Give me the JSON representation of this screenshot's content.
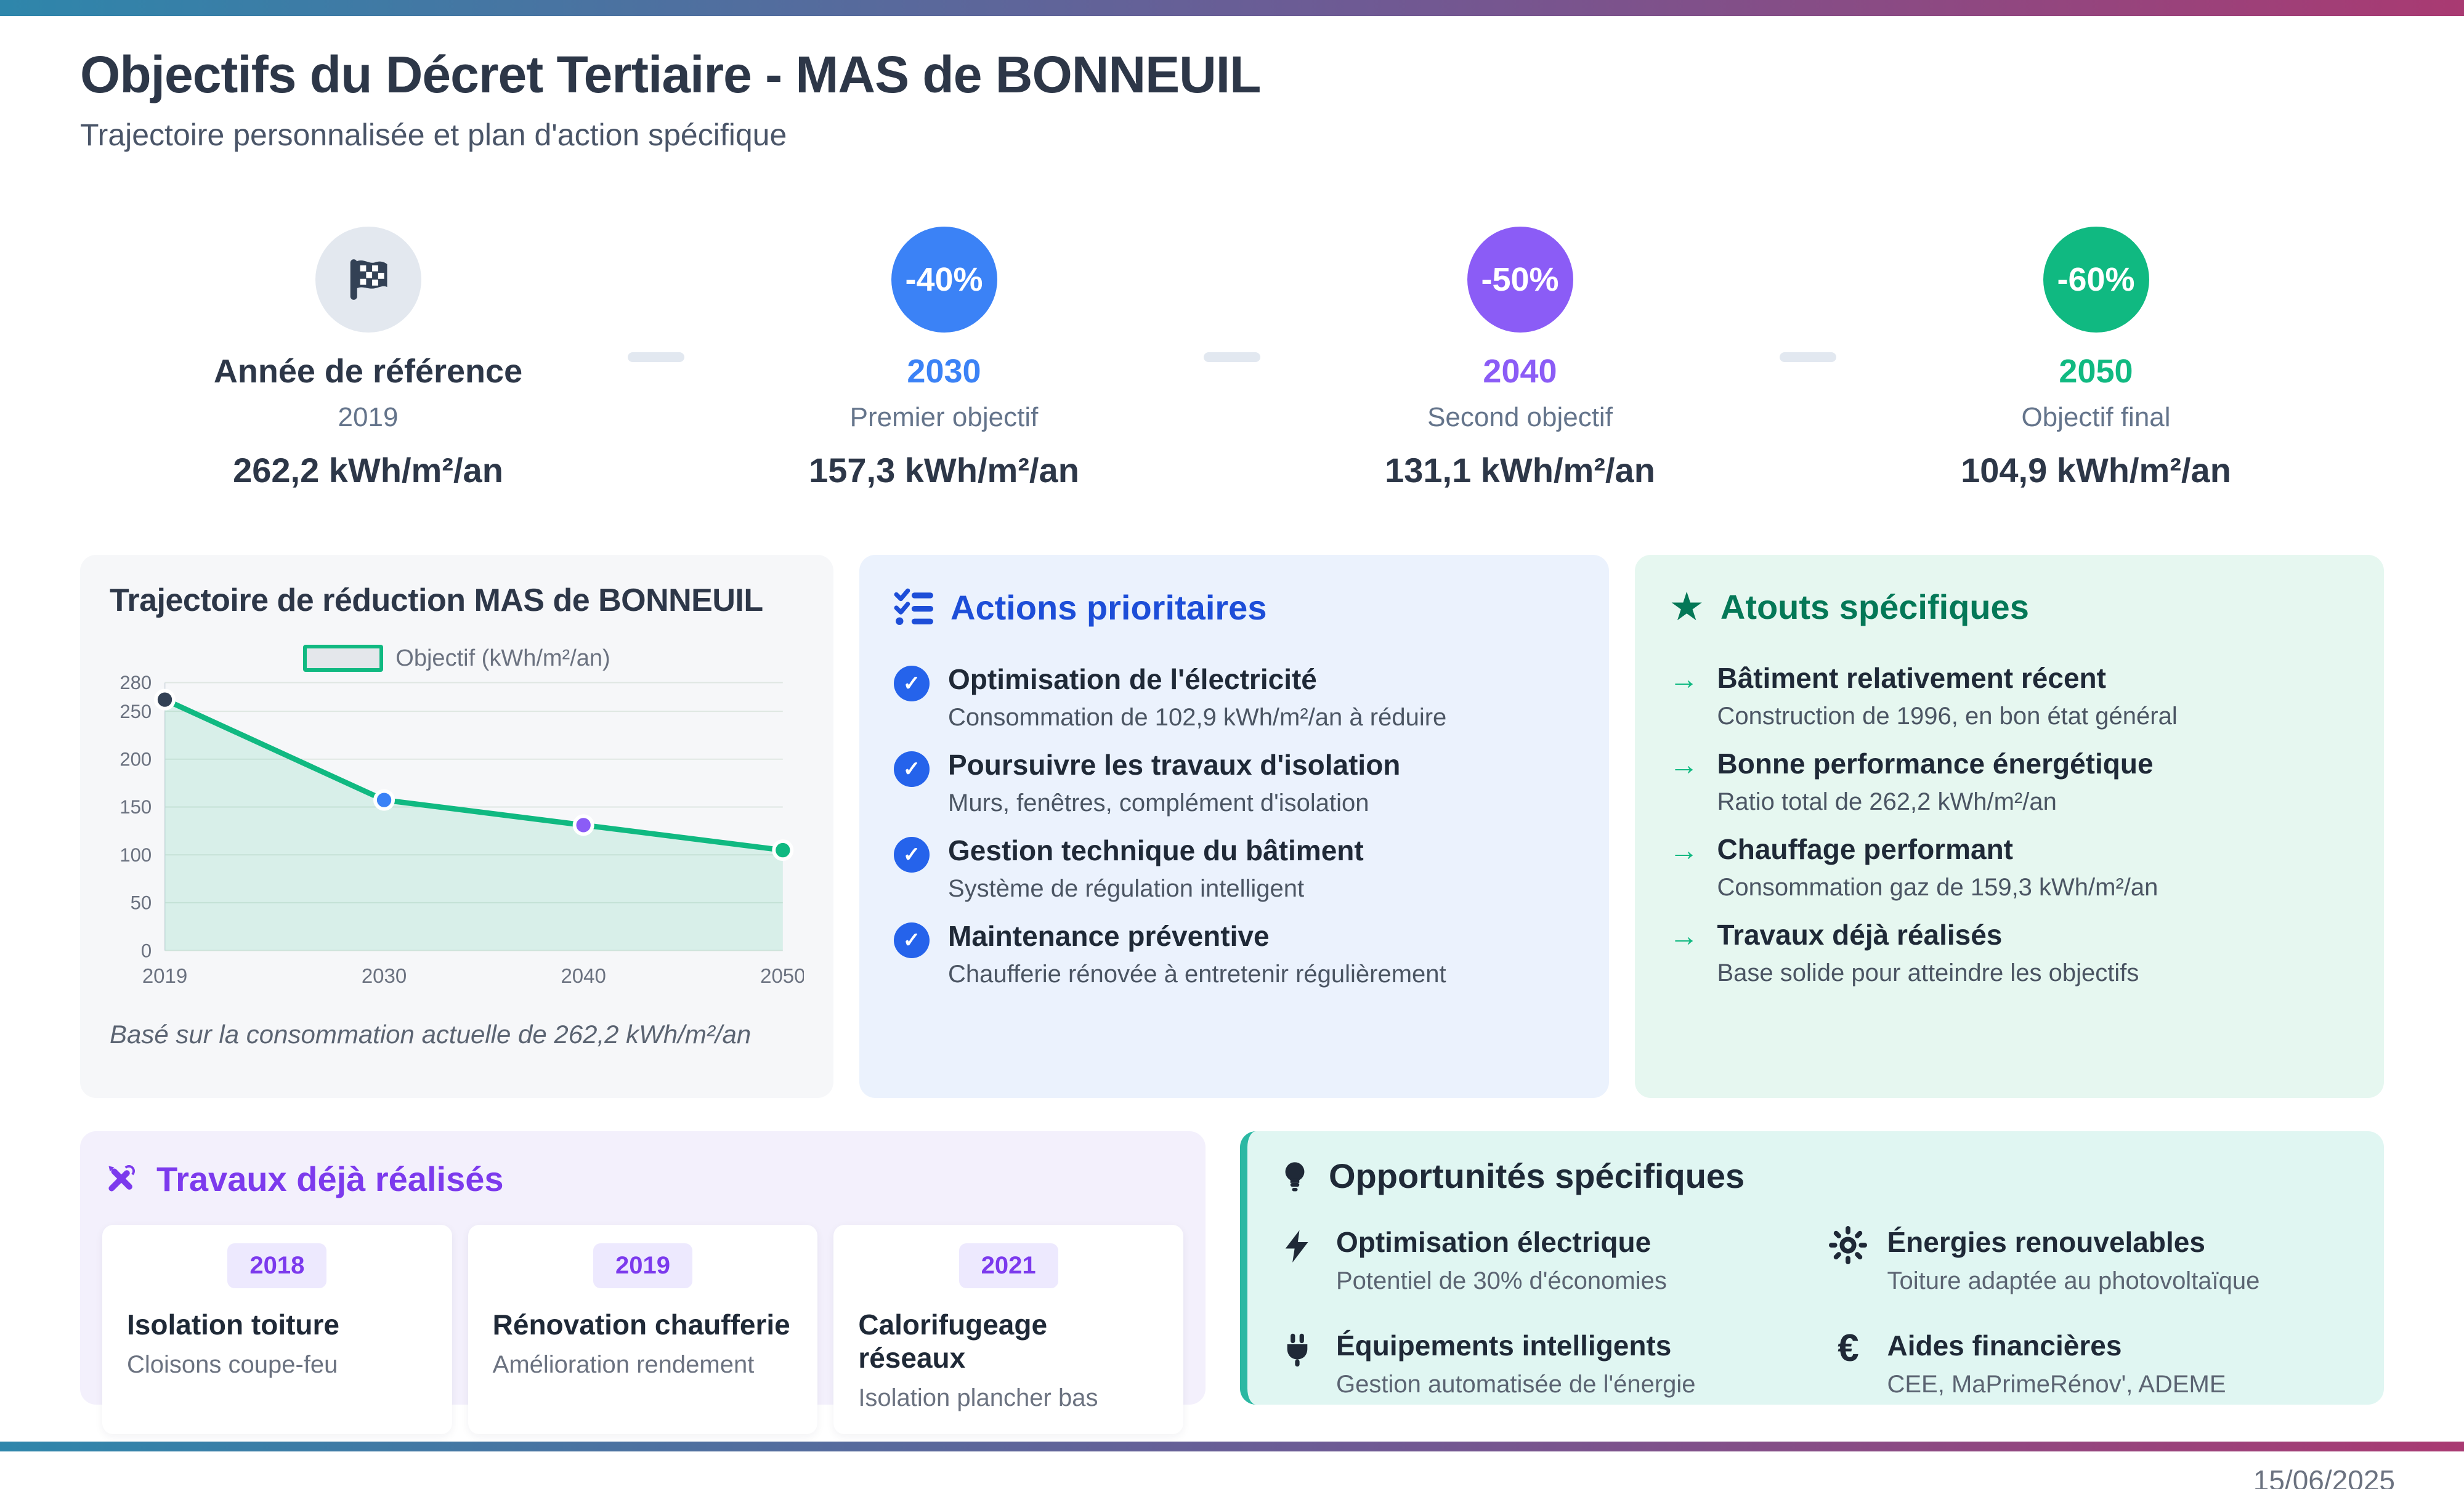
{
  "header": {
    "title": "Objectifs du Décret Tertiaire - MAS de BONNEUIL",
    "subtitle": "Trajectoire personnalisée et plan d'action spécifique"
  },
  "colors": {
    "gradient_left": "#2E86AB",
    "gradient_right": "#A93A72",
    "reference_grey": "#E3E8EF",
    "objective_blue": "#3B82F6",
    "objective_purple": "#8B5CF6",
    "objective_green": "#10B981",
    "actions_blue": "#1D4ED8",
    "strengths_green": "#047857",
    "works_purple": "#7C3AED",
    "opportunities_teal": "#2BB8A3"
  },
  "timeline": {
    "milestones": [
      {
        "icon": "checkered-flag",
        "badge": "",
        "label": "Année de référence",
        "sublabel": "2019",
        "value": "262,2 kWh/m²/an"
      },
      {
        "icon": "",
        "badge": "-40%",
        "label": "2030",
        "sublabel": "Premier objectif",
        "value": "157,3 kWh/m²/an"
      },
      {
        "icon": "",
        "badge": "-50%",
        "label": "2040",
        "sublabel": "Second objectif",
        "value": "131,1 kWh/m²/an"
      },
      {
        "icon": "",
        "badge": "-60%",
        "label": "2050",
        "sublabel": "Objectif final",
        "value": "104,9 kWh/m²/an"
      }
    ]
  },
  "chart_panel": {
    "title": "Trajectoire de réduction MAS de BONNEUIL",
    "legend": "Objectif (kWh/m²/an)",
    "note": "Basé sur la consommation actuelle de 262,2 kWh/m²/an"
  },
  "chart_data": {
    "type": "line",
    "title": "Trajectoire de réduction MAS de BONNEUIL",
    "x": [
      2019,
      2030,
      2040,
      2050
    ],
    "series": [
      {
        "name": "Objectif (kWh/m²/an)",
        "values": [
          262.2,
          157.3,
          131.1,
          104.9
        ]
      }
    ],
    "ylim": [
      0,
      280
    ],
    "yticks": [
      0,
      50,
      100,
      150,
      200,
      250,
      280
    ],
    "grid": true,
    "area": true,
    "legend_position": "top",
    "line_color": "#10B981",
    "area_color": "rgba(16,185,129,0.13)",
    "point_colors": [
      "#334155",
      "#3B82F6",
      "#8B5CF6",
      "#10B981"
    ],
    "tick_color": "#6B7280"
  },
  "actions": {
    "title": "Actions prioritaires",
    "items": [
      {
        "title": "Optimisation de l'électricité",
        "desc": "Consommation de 102,9 kWh/m²/an à réduire"
      },
      {
        "title": "Poursuivre les travaux d'isolation",
        "desc": "Murs, fenêtres, complément d'isolation"
      },
      {
        "title": "Gestion technique du bâtiment",
        "desc": "Système de régulation intelligent"
      },
      {
        "title": "Maintenance préventive",
        "desc": "Chaufferie rénovée à entretenir régulièrement"
      }
    ]
  },
  "strengths": {
    "title": "Atouts spécifiques",
    "arrow": "→",
    "items": [
      {
        "title": "Bâtiment relativement récent",
        "desc": "Construction de 1996, en bon état général"
      },
      {
        "title": "Bonne performance énergétique",
        "desc": "Ratio total de 262,2 kWh/m²/an"
      },
      {
        "title": "Chauffage performant",
        "desc": "Consommation gaz de 159,3 kWh/m²/an"
      },
      {
        "title": "Travaux déjà réalisés",
        "desc": "Base solide pour atteindre les objectifs"
      }
    ]
  },
  "works": {
    "title": "Travaux déjà réalisés",
    "cards": [
      {
        "year": "2018",
        "title": "Isolation toiture",
        "desc": "Cloisons coupe-feu"
      },
      {
        "year": "2019",
        "title": "Rénovation chaufferie",
        "desc": "Amélioration rendement"
      },
      {
        "year": "2021",
        "title": "Calorifugeage réseaux",
        "desc": "Isolation plancher bas"
      }
    ]
  },
  "opportunities": {
    "title": "Opportunités spécifiques",
    "items": [
      {
        "icon": "bolt",
        "title": "Optimisation électrique",
        "desc": "Potentiel de 30% d'économies"
      },
      {
        "icon": "sun",
        "title": "Énergies renouvelables",
        "desc": "Toiture adaptée au photovoltaïque"
      },
      {
        "icon": "plug",
        "title": "Équipements intelligents",
        "desc": "Gestion automatisée de l'énergie"
      },
      {
        "icon": "euro",
        "title": "Aides financières",
        "desc": "CEE, MaPrimeRénov', ADEME",
        "euro_glyph": "€"
      }
    ]
  },
  "misc": {
    "check_glyph": "✓"
  },
  "footer": {
    "date": "15/06/2025"
  }
}
